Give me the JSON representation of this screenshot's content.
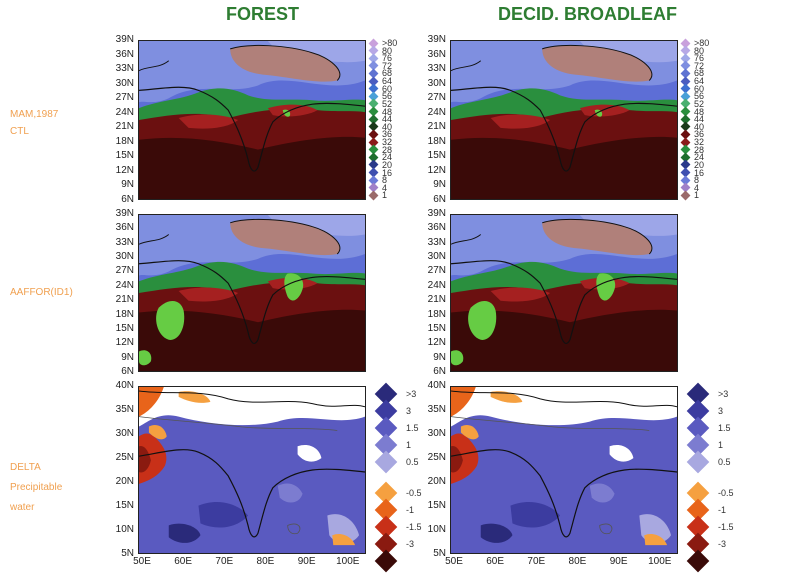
{
  "titles": {
    "col1": "FOREST",
    "col2": "DECID. BROADLEAF"
  },
  "row_labels": {
    "row1_line1": "MAM,1987",
    "row1_line2": "CTL",
    "row2": "AAFFOR(ID1)",
    "row3_line1": "DELTA",
    "row3_line2": "Precipitable",
    "row3_line3": "water"
  },
  "y_ticks_upper": [
    "39N",
    "36N",
    "33N",
    "30N",
    "27N",
    "24N",
    "21N",
    "18N",
    "15N",
    "12N",
    "9N",
    "6N"
  ],
  "y_ticks_lower": [
    "40N",
    "35N",
    "30N",
    "25N",
    "20N",
    "15N",
    "10N",
    "5N"
  ],
  "x_ticks": [
    "50E",
    "60E",
    "70E",
    "80E",
    "90E",
    "100E"
  ],
  "precip_legend": [
    {
      "label": ">80",
      "color": "#c9a0dc"
    },
    {
      "label": "80",
      "color": "#b7a8e6"
    },
    {
      "label": "76",
      "color": "#a0a8e8"
    },
    {
      "label": "72",
      "color": "#7f8fe0"
    },
    {
      "label": "68",
      "color": "#5f73d2"
    },
    {
      "label": "64",
      "color": "#4a5cc0"
    },
    {
      "label": "60",
      "color": "#3d6fd0"
    },
    {
      "label": "56",
      "color": "#4aa0d8"
    },
    {
      "label": "52",
      "color": "#4ab070"
    },
    {
      "label": "48",
      "color": "#2a8f3e"
    },
    {
      "label": "44",
      "color": "#1f6f2e"
    },
    {
      "label": "40",
      "color": "#1a3a1a"
    },
    {
      "label": "36",
      "color": "#6b1010"
    },
    {
      "label": "32",
      "color": "#8b1a1a"
    },
    {
      "label": "28",
      "color": "#2a8f3e"
    },
    {
      "label": "24",
      "color": "#1f6f2e"
    },
    {
      "label": "20",
      "color": "#2a3a8a"
    },
    {
      "label": "16",
      "color": "#3e4fb0"
    },
    {
      "label": "8",
      "color": "#6a7ad8"
    },
    {
      "label": "4",
      "color": "#a080c8"
    },
    {
      "label": "1",
      "color": "#9a6a6a"
    }
  ],
  "delta_legend": [
    {
      "label": ">3",
      "color": "#2a2a7a"
    },
    {
      "label": "3",
      "color": "#3c3ca0"
    },
    {
      "label": "1.5",
      "color": "#5a5ac0"
    },
    {
      "label": "1",
      "color": "#7c7cd0"
    },
    {
      "label": "0.5",
      "color": "#a8a8e0"
    },
    {
      "label": "-0.5",
      "color": "#f5a040"
    },
    {
      "label": "-1",
      "color": "#e8641a"
    },
    {
      "label": "-1.5",
      "color": "#c83018"
    },
    {
      "label": "-3",
      "color": "#8a1a10"
    },
    {
      "label": "",
      "color": "#3a0a08"
    }
  ]
}
